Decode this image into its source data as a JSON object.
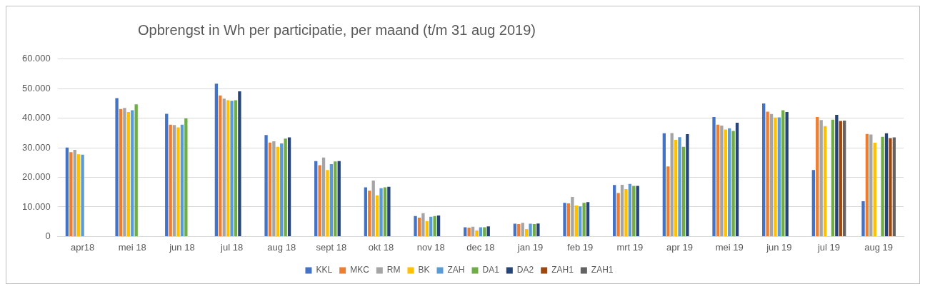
{
  "chart_data": {
    "type": "bar",
    "title": "Opbrengst in Wh per participatie, per maand (t/m 31 aug 2019)",
    "categories": [
      "apr18",
      "mei 18",
      "jun 18",
      "jul 18",
      "aug 18",
      "sept 18",
      "okt 18",
      "nov 18",
      "dec 18",
      "jan 19",
      "feb 19",
      "mrt 19",
      "apr 19",
      "mei 19",
      "jun 19",
      "jul 19",
      "aug 19"
    ],
    "series": [
      {
        "name": "KKL",
        "color": "#4472c4",
        "values": [
          30100,
          46800,
          41500,
          51700,
          34300,
          25500,
          16600,
          6900,
          3100,
          4300,
          11400,
          17400,
          34900,
          40400,
          45000,
          22500,
          11900
        ]
      },
      {
        "name": "MKC",
        "color": "#ed7d31",
        "values": [
          28500,
          43100,
          37800,
          47700,
          31800,
          24100,
          15500,
          6400,
          3000,
          4200,
          11200,
          14700,
          23700,
          37800,
          42200,
          40400,
          34700
        ]
      },
      {
        "name": "RM",
        "color": "#a5a5a5",
        "values": [
          29300,
          43500,
          37700,
          46600,
          32200,
          26700,
          18900,
          7900,
          3300,
          4600,
          13400,
          17500,
          35000,
          37500,
          41400,
          39400,
          34500
        ]
      },
      {
        "name": "BK",
        "color": "#ffc000",
        "values": [
          27800,
          42100,
          36900,
          46100,
          30300,
          22500,
          13900,
          5200,
          2000,
          2500,
          10500,
          16000,
          32700,
          36200,
          40200,
          37300,
          31700
        ]
      },
      {
        "name": "ZAH",
        "color": "#5b9bd5",
        "values": [
          27700,
          42700,
          37800,
          45900,
          31500,
          24500,
          16300,
          6700,
          3100,
          4300,
          10200,
          17800,
          33600,
          36600,
          40300,
          null,
          null
        ]
      },
      {
        "name": "DA1",
        "color": "#70ad47",
        "values": [
          null,
          44700,
          39900,
          46100,
          33100,
          25400,
          16600,
          6900,
          3100,
          4200,
          11400,
          17100,
          30300,
          35700,
          42700,
          39500,
          33700
        ]
      },
      {
        "name": "DA2",
        "color": "#264478",
        "values": [
          null,
          null,
          null,
          49100,
          33500,
          25500,
          16800,
          7100,
          3400,
          4400,
          11600,
          17100,
          34600,
          38500,
          42100,
          41100,
          34900
        ]
      },
      {
        "name": "ZAH1",
        "color": "#9e480e",
        "values": [
          null,
          null,
          null,
          null,
          null,
          null,
          null,
          null,
          null,
          null,
          null,
          null,
          null,
          null,
          null,
          39100,
          33300
        ]
      },
      {
        "name": "ZAH1",
        "color": "#636363",
        "values": [
          null,
          null,
          null,
          null,
          null,
          null,
          null,
          null,
          null,
          null,
          null,
          null,
          null,
          null,
          null,
          39200,
          33500
        ]
      }
    ],
    "ylim": [
      0,
      60000
    ],
    "yticks": [
      0,
      {
        "value": 10000,
        "label": "10.000"
      },
      {
        "value": 20000,
        "label": "20.000"
      },
      {
        "value": 30000,
        "label": "30.000"
      },
      {
        "value": 40000,
        "label": "40.000"
      },
      {
        "value": 50000,
        "label": "50.000"
      },
      {
        "value": 60000,
        "label": "60.000"
      }
    ],
    "grid": "y",
    "legend": "bottom"
  }
}
